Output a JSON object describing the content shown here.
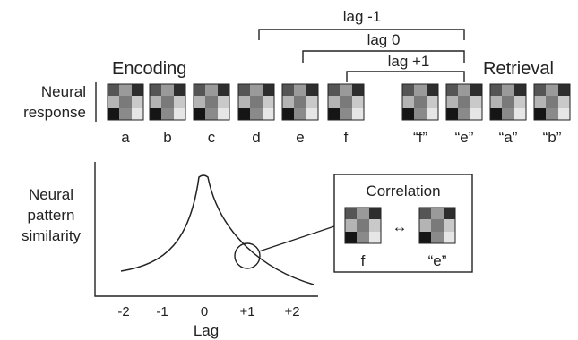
{
  "headings": {
    "encoding": "Encoding",
    "retrieval": "Retrieval",
    "neural_response": [
      "Neural",
      "response"
    ],
    "similarity": [
      "Neural",
      "pattern",
      "similarity"
    ],
    "correlation": "Correlation"
  },
  "lag_brackets": [
    {
      "label": "lag -1",
      "from_item": "d",
      "to_item": "“e”"
    },
    {
      "label": "lag 0",
      "from_item": "e",
      "to_item": "“e”"
    },
    {
      "label": "lag +1",
      "from_item": "f",
      "to_item": "“e”"
    }
  ],
  "encoding_items": [
    "a",
    "b",
    "c",
    "d",
    "e",
    "f"
  ],
  "retrieval_items": [
    "“f”",
    "“e”",
    "“a”",
    "“b”"
  ],
  "correlation_pair": {
    "left": "f",
    "right": "“e”",
    "arrow": "↔"
  },
  "plot": {
    "xlabel": "Lag",
    "xticks": [
      "-2",
      "-1",
      "0",
      "+1",
      "+2"
    ],
    "curve": "similarity peaks at lag 0 and decays with distance; asymmetric (forward lags decay more slowly)",
    "highlighted_lag": "+1"
  },
  "colors": {
    "ink": "#222222"
  }
}
